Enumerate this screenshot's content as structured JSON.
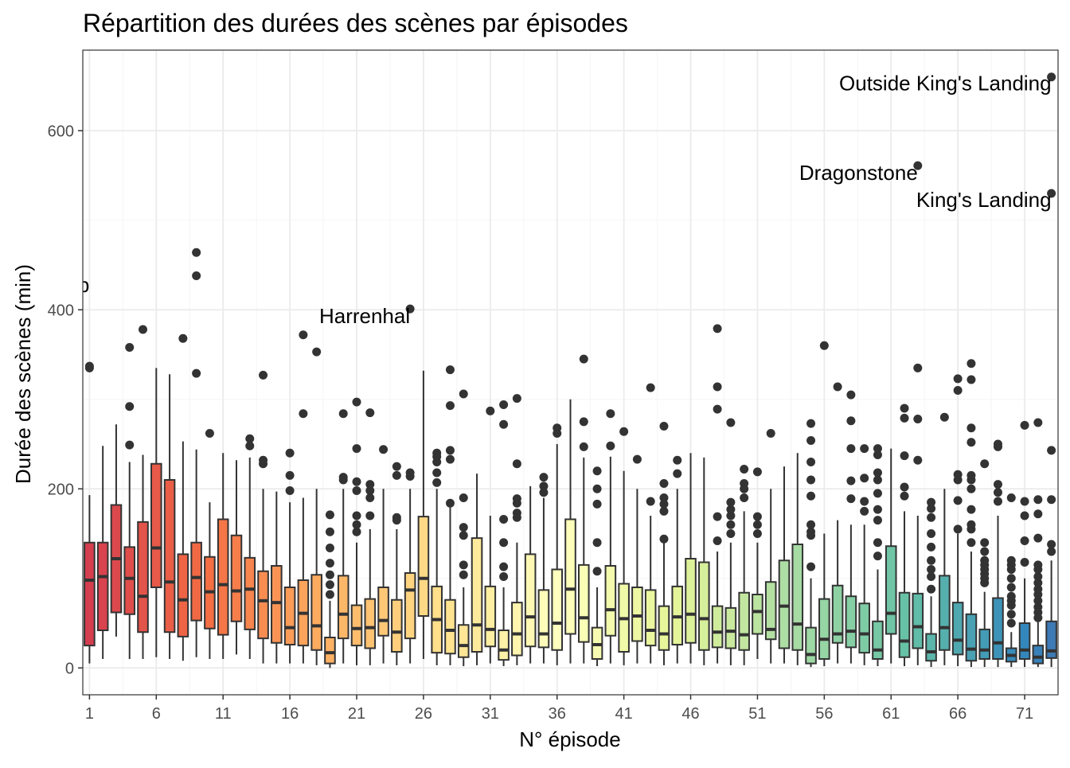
{
  "chart_data": {
    "type": "boxplot",
    "title": "Répartition des durées des scènes par épisodes",
    "xlabel": "N° épisode",
    "ylabel": "Durée des scènes (min)",
    "ylim": [
      -30,
      690
    ],
    "xlim": [
      0.5,
      73.5
    ],
    "x_ticks": [
      1,
      6,
      11,
      16,
      21,
      26,
      31,
      36,
      41,
      46,
      51,
      56,
      61,
      66,
      71
    ],
    "y_ticks": [
      0,
      200,
      400,
      600
    ],
    "grid": true,
    "legend": "none",
    "palette": "Spectral",
    "colors": {
      "grid_major": "#ebebeb",
      "grid_minor": "#f5f5f5",
      "box_outline": "#333333",
      "point": "#333333",
      "tick_label": "#4d4d4d",
      "panel_border": "#333333"
    },
    "boxes": [
      {
        "episode": 1,
        "q1": 25,
        "median": 98,
        "q3": 140,
        "whisker_low": 5,
        "whisker_high": 193,
        "outliers": [
          335,
          337
        ]
      },
      {
        "episode": 2,
        "q1": 42,
        "median": 102,
        "q3": 140,
        "whisker_low": 10,
        "whisker_high": 248,
        "outliers": []
      },
      {
        "episode": 3,
        "q1": 62,
        "median": 122,
        "q3": 182,
        "whisker_low": 35,
        "whisker_high": 272,
        "outliers": []
      },
      {
        "episode": 4,
        "q1": 60,
        "median": 100,
        "q3": 135,
        "whisker_low": 10,
        "whisker_high": 230,
        "outliers": [
          249,
          292,
          358
        ]
      },
      {
        "episode": 5,
        "q1": 40,
        "median": 80,
        "q3": 163,
        "whisker_low": 10,
        "whisker_high": 238,
        "outliers": [
          378
        ]
      },
      {
        "episode": 6,
        "q1": 90,
        "median": 134,
        "q3": 228,
        "whisker_low": 12,
        "whisker_high": 335,
        "outliers": []
      },
      {
        "episode": 7,
        "q1": 40,
        "median": 96,
        "q3": 210,
        "whisker_low": 10,
        "whisker_high": 328,
        "outliers": []
      },
      {
        "episode": 8,
        "q1": 35,
        "median": 76,
        "q3": 127,
        "whisker_low": 8,
        "whisker_high": 253,
        "outliers": [
          368
        ]
      },
      {
        "episode": 9,
        "q1": 53,
        "median": 101,
        "q3": 140,
        "whisker_low": 12,
        "whisker_high": 244,
        "outliers": [
          329,
          438,
          464
        ]
      },
      {
        "episode": 10,
        "q1": 44,
        "median": 85,
        "q3": 124,
        "whisker_low": 10,
        "whisker_high": 185,
        "outliers": [
          262
        ]
      },
      {
        "episode": 11,
        "q1": 37,
        "median": 93,
        "q3": 166,
        "whisker_low": 10,
        "whisker_high": 240,
        "outliers": []
      },
      {
        "episode": 12,
        "q1": 52,
        "median": 86,
        "q3": 148,
        "whisker_low": 15,
        "whisker_high": 232,
        "outliers": []
      },
      {
        "episode": 13,
        "q1": 43,
        "median": 88,
        "q3": 123,
        "whisker_low": 10,
        "whisker_high": 235,
        "outliers": [
          248,
          256
        ]
      },
      {
        "episode": 14,
        "q1": 33,
        "median": 75,
        "q3": 108,
        "whisker_low": 5,
        "whisker_high": 200,
        "outliers": [
          228,
          232,
          327
        ]
      },
      {
        "episode": 15,
        "q1": 28,
        "median": 73,
        "q3": 114,
        "whisker_low": 5,
        "whisker_high": 197,
        "outliers": []
      },
      {
        "episode": 16,
        "q1": 26,
        "median": 45,
        "q3": 90,
        "whisker_low": 5,
        "whisker_high": 185,
        "outliers": [
          198,
          215,
          240
        ]
      },
      {
        "episode": 17,
        "q1": 25,
        "median": 61,
        "q3": 98,
        "whisker_low": 5,
        "whisker_high": 190,
        "outliers": [
          284,
          372
        ]
      },
      {
        "episode": 18,
        "q1": 20,
        "median": 47,
        "q3": 104,
        "whisker_low": 3,
        "whisker_high": 200,
        "outliers": [
          353
        ]
      },
      {
        "episode": 19,
        "q1": 5,
        "median": 17,
        "q3": 34,
        "whisker_low": 0,
        "whisker_high": 75,
        "outliers": [
          82,
          93,
          104,
          117,
          134,
          152,
          171
        ]
      },
      {
        "episode": 20,
        "q1": 33,
        "median": 60,
        "q3": 103,
        "whisker_low": 5,
        "whisker_high": 200,
        "outliers": [
          210,
          213,
          284
        ]
      },
      {
        "episode": 21,
        "q1": 25,
        "median": 44,
        "q3": 70,
        "whisker_low": 3,
        "whisker_high": 140,
        "outliers": [
          152,
          160,
          170,
          198,
          208,
          245,
          297
        ]
      },
      {
        "episode": 22,
        "q1": 22,
        "median": 45,
        "q3": 77,
        "whisker_low": 3,
        "whisker_high": 155,
        "outliers": [
          170,
          190,
          198,
          205,
          285
        ]
      },
      {
        "episode": 23,
        "q1": 36,
        "median": 53,
        "q3": 90,
        "whisker_low": 5,
        "whisker_high": 200,
        "outliers": [
          244
        ]
      },
      {
        "episode": 24,
        "q1": 18,
        "median": 40,
        "q3": 76,
        "whisker_low": 3,
        "whisker_high": 155,
        "outliers": [
          165,
          168,
          215,
          225
        ]
      },
      {
        "episode": 25,
        "q1": 33,
        "median": 87,
        "q3": 106,
        "whisker_low": 5,
        "whisker_high": 200,
        "outliers": [
          214,
          218,
          401
        ]
      },
      {
        "episode": 26,
        "q1": 58,
        "median": 100,
        "q3": 169,
        "whisker_low": 10,
        "whisker_high": 332,
        "outliers": []
      },
      {
        "episode": 27,
        "q1": 17,
        "median": 54,
        "q3": 91,
        "whisker_low": 3,
        "whisker_high": 200,
        "outliers": [
          207,
          218,
          230,
          236,
          240
        ]
      },
      {
        "episode": 28,
        "q1": 16,
        "median": 42,
        "q3": 76,
        "whisker_low": 3,
        "whisker_high": 180,
        "outliers": [
          184,
          233,
          243,
          293,
          333
        ]
      },
      {
        "episode": 29,
        "q1": 12,
        "median": 25,
        "q3": 48,
        "whisker_low": 2,
        "whisker_high": 90,
        "outliers": [
          104,
          115,
          148,
          157,
          190,
          306
        ]
      },
      {
        "episode": 30,
        "q1": 18,
        "median": 48,
        "q3": 145,
        "whisker_low": 3,
        "whisker_high": 217,
        "outliers": []
      },
      {
        "episode": 31,
        "q1": 24,
        "median": 43,
        "q3": 91,
        "whisker_low": 5,
        "whisker_high": 170,
        "outliers": [
          287
        ]
      },
      {
        "episode": 32,
        "q1": 9,
        "median": 20,
        "q3": 42,
        "whisker_low": 2,
        "whisker_high": 90,
        "outliers": [
          102,
          113,
          140,
          166,
          272,
          294
        ]
      },
      {
        "episode": 33,
        "q1": 14,
        "median": 38,
        "q3": 73,
        "whisker_low": 3,
        "whisker_high": 140,
        "outliers": [
          168,
          173,
          184,
          189,
          228,
          301
        ]
      },
      {
        "episode": 34,
        "q1": 24,
        "median": 57,
        "q3": 127,
        "whisker_low": 5,
        "whisker_high": 203,
        "outliers": []
      },
      {
        "episode": 35,
        "q1": 23,
        "median": 38,
        "q3": 87,
        "whisker_low": 5,
        "whisker_high": 190,
        "outliers": [
          196,
          203,
          213
        ]
      },
      {
        "episode": 36,
        "q1": 20,
        "median": 50,
        "q3": 110,
        "whisker_low": 3,
        "whisker_high": 250,
        "outliers": [
          262,
          268
        ]
      },
      {
        "episode": 37,
        "q1": 38,
        "median": 88,
        "q3": 166,
        "whisker_low": 5,
        "whisker_high": 300,
        "outliers": []
      },
      {
        "episode": 38,
        "q1": 29,
        "median": 56,
        "q3": 115,
        "whisker_low": 5,
        "whisker_high": 235,
        "outliers": [
          247,
          275,
          345
        ]
      },
      {
        "episode": 39,
        "q1": 10,
        "median": 26,
        "q3": 45,
        "whisker_low": 2,
        "whisker_high": 90,
        "outliers": [
          108,
          140,
          183,
          200,
          220
        ]
      },
      {
        "episode": 40,
        "q1": 36,
        "median": 65,
        "q3": 114,
        "whisker_low": 5,
        "whisker_high": 236,
        "outliers": [
          248,
          284
        ]
      },
      {
        "episode": 41,
        "q1": 18,
        "median": 55,
        "q3": 94,
        "whisker_low": 3,
        "whisker_high": 220,
        "outliers": [
          264
        ]
      },
      {
        "episode": 42,
        "q1": 30,
        "median": 58,
        "q3": 90,
        "whisker_low": 5,
        "whisker_high": 200,
        "outliers": [
          233
        ]
      },
      {
        "episode": 43,
        "q1": 25,
        "median": 42,
        "q3": 87,
        "whisker_low": 5,
        "whisker_high": 170,
        "outliers": [
          186,
          313
        ]
      },
      {
        "episode": 44,
        "q1": 20,
        "median": 38,
        "q3": 69,
        "whisker_low": 3,
        "whisker_high": 140,
        "outliers": [
          144,
          175,
          183,
          190,
          206,
          270
        ]
      },
      {
        "episode": 45,
        "q1": 26,
        "median": 57,
        "q3": 91,
        "whisker_low": 5,
        "whisker_high": 200,
        "outliers": [
          217,
          232
        ]
      },
      {
        "episode": 46,
        "q1": 28,
        "median": 60,
        "q3": 122,
        "whisker_low": 5,
        "whisker_high": 240,
        "outliers": []
      },
      {
        "episode": 47,
        "q1": 20,
        "median": 55,
        "q3": 118,
        "whisker_low": 3,
        "whisker_high": 235,
        "outliers": []
      },
      {
        "episode": 48,
        "q1": 23,
        "median": 40,
        "q3": 69,
        "whisker_low": 5,
        "whisker_high": 130,
        "outliers": [
          142,
          169,
          289,
          314,
          379
        ]
      },
      {
        "episode": 49,
        "q1": 22,
        "median": 41,
        "q3": 67,
        "whisker_low": 3,
        "whisker_high": 140,
        "outliers": [
          150,
          160,
          170,
          177,
          185,
          274
        ]
      },
      {
        "episode": 50,
        "q1": 20,
        "median": 37,
        "q3": 84,
        "whisker_low": 3,
        "whisker_high": 175,
        "outliers": [
          190,
          200,
          206,
          222
        ]
      },
      {
        "episode": 51,
        "q1": 38,
        "median": 63,
        "q3": 82,
        "whisker_low": 10,
        "whisker_high": 140,
        "outliers": [
          150,
          160,
          169,
          219
        ]
      },
      {
        "episode": 52,
        "q1": 32,
        "median": 43,
        "q3": 96,
        "whisker_low": 5,
        "whisker_high": 200,
        "outliers": [
          262
        ]
      },
      {
        "episode": 53,
        "q1": 22,
        "median": 69,
        "q3": 120,
        "whisker_low": 5,
        "whisker_high": 225,
        "outliers": []
      },
      {
        "episode": 54,
        "q1": 20,
        "median": 49,
        "q3": 138,
        "whisker_low": 3,
        "whisker_high": 240,
        "outliers": []
      },
      {
        "episode": 55,
        "q1": 5,
        "median": 15,
        "q3": 45,
        "whisker_low": 1,
        "whisker_high": 100,
        "outliers": [
          113,
          148,
          152,
          160,
          192,
          210,
          230,
          254,
          273
        ]
      },
      {
        "episode": 56,
        "q1": 10,
        "median": 32,
        "q3": 77,
        "whisker_low": 2,
        "whisker_high": 150,
        "outliers": [
          360
        ]
      },
      {
        "episode": 57,
        "q1": 28,
        "median": 38,
        "q3": 92,
        "whisker_low": 5,
        "whisker_high": 165,
        "outliers": [
          314
        ]
      },
      {
        "episode": 58,
        "q1": 23,
        "median": 41,
        "q3": 80,
        "whisker_low": 5,
        "whisker_high": 160,
        "outliers": [
          189,
          209,
          245,
          276,
          305
        ]
      },
      {
        "episode": 59,
        "q1": 17,
        "median": 38,
        "q3": 72,
        "whisker_low": 3,
        "whisker_high": 160,
        "outliers": [
          175,
          186,
          212,
          245
        ]
      },
      {
        "episode": 60,
        "q1": 10,
        "median": 20,
        "q3": 52,
        "whisker_low": 2,
        "whisker_high": 110,
        "outliers": [
          125,
          140,
          165,
          177,
          195,
          210,
          218,
          238,
          245
        ]
      },
      {
        "episode": 61,
        "q1": 38,
        "median": 61,
        "q3": 136,
        "whisker_low": 5,
        "whisker_high": 245,
        "outliers": []
      },
      {
        "episode": 62,
        "q1": 12,
        "median": 30,
        "q3": 84,
        "whisker_low": 2,
        "whisker_high": 175,
        "outliers": [
          192,
          202,
          237,
          279,
          290
        ]
      },
      {
        "episode": 63,
        "q1": 22,
        "median": 46,
        "q3": 83,
        "whisker_low": 3,
        "whisker_high": 170,
        "outliers": [
          232,
          278,
          335,
          561
        ]
      },
      {
        "episode": 64,
        "q1": 8,
        "median": 18,
        "q3": 38,
        "whisker_low": 1,
        "whisker_high": 80,
        "outliers": [
          88,
          102,
          110,
          120,
          135,
          150,
          168,
          178,
          185
        ]
      },
      {
        "episode": 65,
        "q1": 20,
        "median": 45,
        "q3": 103,
        "whisker_low": 3,
        "whisker_high": 200,
        "outliers": [
          280
        ]
      },
      {
        "episode": 66,
        "q1": 15,
        "median": 31,
        "q3": 73,
        "whisker_low": 2,
        "whisker_high": 150,
        "outliers": [
          155,
          187,
          210,
          216,
          310,
          323
        ]
      },
      {
        "episode": 67,
        "q1": 8,
        "median": 21,
        "q3": 60,
        "whisker_low": 1,
        "whisker_high": 130,
        "outliers": [
          140,
          155,
          160,
          177,
          200,
          210,
          215,
          252,
          268,
          322,
          340
        ]
      },
      {
        "episode": 68,
        "q1": 10,
        "median": 20,
        "q3": 43,
        "whisker_low": 1,
        "whisker_high": 85,
        "outliers": [
          95,
          100,
          105,
          110,
          115,
          120,
          130,
          140,
          228
        ]
      },
      {
        "episode": 69,
        "q1": 10,
        "median": 28,
        "q3": 78,
        "whisker_low": 1,
        "whisker_high": 170,
        "outliers": [
          186,
          196,
          205,
          247,
          250
        ]
      },
      {
        "episode": 70,
        "q1": 7,
        "median": 14,
        "q3": 22,
        "whisker_low": 1,
        "whisker_high": 40,
        "outliers": [
          50,
          60,
          70,
          75,
          80,
          90,
          100,
          110,
          115,
          120,
          190
        ]
      },
      {
        "episode": 71,
        "q1": 10,
        "median": 20,
        "q3": 50,
        "whisker_low": 1,
        "whisker_high": 100,
        "outliers": [
          118,
          142,
          170,
          186,
          271
        ]
      },
      {
        "episode": 72,
        "q1": 5,
        "median": 12,
        "q3": 25,
        "whisker_low": 1,
        "whisker_high": 52,
        "outliers": [
          56,
          62,
          68,
          75,
          82,
          88,
          95,
          102,
          110,
          115,
          145,
          172,
          188,
          274
        ]
      },
      {
        "episode": 73,
        "q1": 11,
        "median": 19,
        "q3": 52,
        "whisker_low": 1,
        "whisker_high": 120,
        "outliers": [
          130,
          138,
          188,
          243,
          530,
          660
        ]
      }
    ],
    "annotations": [
      {
        "text": "ister Camp",
        "x": 1,
        "y": 420
      },
      {
        "text": "Harrenhal",
        "x": 25,
        "y": 385
      },
      {
        "text": "Dragonstone",
        "x": 63,
        "y": 545
      },
      {
        "text": "King's Landing",
        "x": 73,
        "y": 515
      },
      {
        "text": "Outside King's Landing",
        "x": 73,
        "y": 645
      }
    ]
  }
}
